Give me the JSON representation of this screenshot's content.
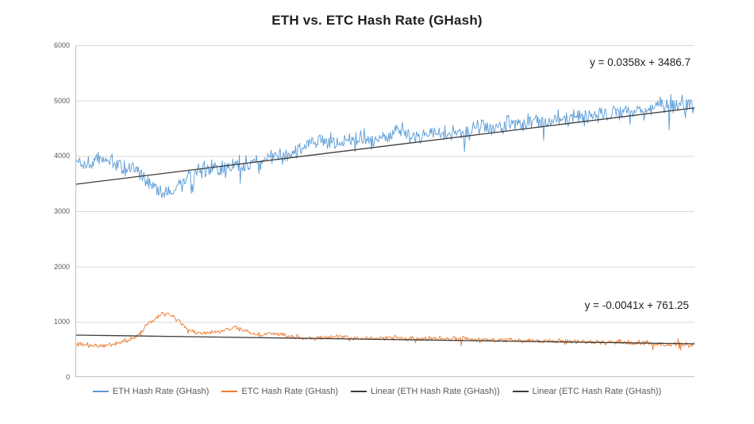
{
  "chart_data": {
    "type": "line",
    "title": "ETH vs. ETC Hash Rate (GHash)",
    "xlabel": "",
    "ylabel": "",
    "ylim": [
      0,
      6000
    ],
    "yticks": [
      0,
      1000,
      2000,
      3000,
      4000,
      5000,
      6000
    ],
    "grid": "horizontal",
    "legend_position": "bottom",
    "series": [
      {
        "name": "ETH Hash Rate (GHash)",
        "color": "#5B9BD5",
        "noise_amplitude": 190,
        "anchors": [
          3900,
          3850,
          3950,
          3900,
          3800,
          3750,
          3500,
          3350,
          3420,
          3550,
          3700,
          3800,
          3760,
          3850,
          3800,
          3900,
          3950,
          4000,
          4100,
          4250,
          4300,
          4250,
          4300,
          4350,
          4250,
          4300,
          4450,
          4400,
          4350,
          4450,
          4400,
          4500,
          4450,
          4550,
          4500,
          4600,
          4550,
          4650,
          4600,
          4700,
          4650,
          4750,
          4700,
          4800,
          4750,
          4850,
          4800,
          4900,
          4850,
          4950,
          4900
        ]
      },
      {
        "name": "ETC Hash Rate (GHash)",
        "color": "#ED7D31",
        "noise_amplitude": 55,
        "anchors": [
          600,
          580,
          560,
          600,
          650,
          750,
          1000,
          1150,
          1100,
          850,
          780,
          800,
          850,
          900,
          800,
          760,
          800,
          750,
          720,
          700,
          720,
          740,
          720,
          700,
          720,
          700,
          720,
          700,
          690,
          700,
          680,
          700,
          680,
          690,
          670,
          680,
          660,
          670,
          650,
          640,
          650,
          630,
          640,
          620,
          630,
          610,
          620,
          600,
          590,
          580,
          590
        ]
      }
    ],
    "trendlines": [
      {
        "name": "Linear  (ETH Hash Rate (GHash))",
        "color": "#3b3b3b",
        "equation": "y = 0.0358x + 3486.7",
        "start_y": 3486.7,
        "end_y": 4868
      },
      {
        "name": "Linear  (ETC Hash Rate (GHash))",
        "color": "#3b3b3b",
        "equation": "y = -0.0041x + 761.25",
        "start_y": 761.25,
        "end_y": 603
      }
    ],
    "legend": [
      "ETH Hash Rate (GHash)",
      "ETC Hash Rate (GHash)",
      "Linear  (ETH Hash Rate (GHash))",
      "Linear  (ETC Hash Rate (GHash))"
    ]
  }
}
